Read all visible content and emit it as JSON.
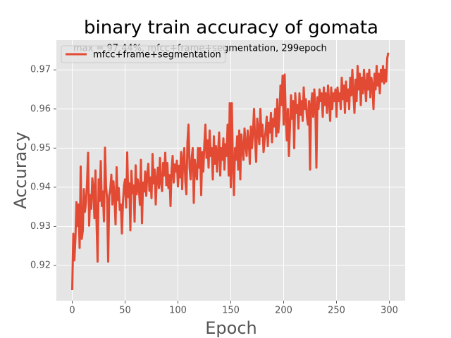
{
  "chart_data": {
    "type": "line",
    "title": "binary train accuracy of gomata",
    "xlabel": "Epoch",
    "ylabel": "Accuracy",
    "annotation": "max = 97.44%, mfcc+frame+segmentation, 299epoch",
    "legend": "upper left",
    "grid": true,
    "xlim": [
      -15,
      315
    ],
    "ylim": [
      0.911,
      0.9776
    ],
    "xticks": [
      0,
      50,
      100,
      150,
      200,
      250,
      300
    ],
    "yticks": [
      0.92,
      0.93,
      0.94,
      0.95,
      0.96,
      0.97
    ],
    "x": [
      0,
      1,
      2,
      3,
      4,
      5,
      6,
      7,
      8,
      9,
      10,
      11,
      12,
      13,
      14,
      15,
      16,
      17,
      18,
      19,
      20,
      21,
      22,
      23,
      24,
      25,
      26,
      27,
      28,
      29,
      30,
      31,
      32,
      33,
      34,
      35,
      36,
      37,
      38,
      39,
      40,
      41,
      42,
      43,
      44,
      45,
      46,
      47,
      48,
      49,
      50,
      51,
      52,
      53,
      54,
      55,
      56,
      57,
      58,
      59,
      60,
      61,
      62,
      63,
      64,
      65,
      66,
      67,
      68,
      69,
      70,
      71,
      72,
      73,
      74,
      75,
      76,
      77,
      78,
      79,
      80,
      81,
      82,
      83,
      84,
      85,
      86,
      87,
      88,
      89,
      90,
      91,
      92,
      93,
      94,
      95,
      96,
      97,
      98,
      99,
      100,
      101,
      102,
      103,
      104,
      105,
      106,
      107,
      108,
      109,
      110,
      111,
      112,
      113,
      114,
      115,
      116,
      117,
      118,
      119,
      120,
      121,
      122,
      123,
      124,
      125,
      126,
      127,
      128,
      129,
      130,
      131,
      132,
      133,
      134,
      135,
      136,
      137,
      138,
      139,
      140,
      141,
      142,
      143,
      144,
      145,
      146,
      147,
      148,
      149,
      150,
      151,
      152,
      153,
      154,
      155,
      156,
      157,
      158,
      159,
      160,
      161,
      162,
      163,
      164,
      165,
      166,
      167,
      168,
      169,
      170,
      171,
      172,
      173,
      174,
      175,
      176,
      177,
      178,
      179,
      180,
      181,
      182,
      183,
      184,
      185,
      186,
      187,
      188,
      189,
      190,
      191,
      192,
      193,
      194,
      195,
      196,
      197,
      198,
      199,
      200,
      201,
      202,
      203,
      204,
      205,
      206,
      207,
      208,
      209,
      210,
      211,
      212,
      213,
      214,
      215,
      216,
      217,
      218,
      219,
      220,
      221,
      222,
      223,
      224,
      225,
      226,
      227,
      228,
      229,
      230,
      231,
      232,
      233,
      234,
      235,
      236,
      237,
      238,
      239,
      240,
      241,
      242,
      243,
      244,
      245,
      246,
      247,
      248,
      249,
      250,
      251,
      252,
      253,
      254,
      255,
      256,
      257,
      258,
      259,
      260,
      261,
      262,
      263,
      264,
      265,
      266,
      267,
      268,
      269,
      270,
      271,
      272,
      273,
      274,
      275,
      276,
      277,
      278,
      279,
      280,
      281,
      282,
      283,
      284,
      285,
      286,
      287,
      288,
      289,
      290,
      291,
      292,
      293,
      294,
      295,
      296,
      297,
      298,
      299
    ],
    "series": [
      {
        "name": "mfcc+frame+segmentation",
        "color": "#e24a33",
        "values": [
          0.9137,
          0.9281,
          0.9213,
          0.9268,
          0.9362,
          0.9301,
          0.9356,
          0.9245,
          0.9453,
          0.9268,
          0.9289,
          0.9395,
          0.9337,
          0.936,
          0.9412,
          0.9488,
          0.9302,
          0.938,
          0.9345,
          0.9423,
          0.9398,
          0.9321,
          0.9443,
          0.9311,
          0.921,
          0.942,
          0.9365,
          0.9467,
          0.9352,
          0.9389,
          0.9313,
          0.9501,
          0.9402,
          0.9369,
          0.921,
          0.9378,
          0.9395,
          0.9432,
          0.9356,
          0.9415,
          0.9372,
          0.9305,
          0.9451,
          0.9367,
          0.9398,
          0.9342,
          0.9356,
          0.9282,
          0.9361,
          0.9405,
          0.942,
          0.9348,
          0.9489,
          0.9375,
          0.941,
          0.929,
          0.9442,
          0.9385,
          0.9405,
          0.9312,
          0.9456,
          0.9382,
          0.942,
          0.9399,
          0.9355,
          0.947,
          0.9308,
          0.9412,
          0.9389,
          0.944,
          0.9378,
          0.9432,
          0.946,
          0.9391,
          0.9425,
          0.9372,
          0.9485,
          0.941,
          0.9445,
          0.9356,
          0.942,
          0.945,
          0.9398,
          0.9475,
          0.9412,
          0.939,
          0.9462,
          0.943,
          0.9488,
          0.9405,
          0.9462,
          0.9398,
          0.9431,
          0.9352,
          0.9445,
          0.948,
          0.9412,
          0.9458,
          0.944,
          0.9468,
          0.9402,
          0.9455,
          0.9425,
          0.949,
          0.9395,
          0.947,
          0.95,
          0.9415,
          0.9382,
          0.9515,
          0.956,
          0.945,
          0.942,
          0.9475,
          0.95,
          0.936,
          0.947,
          0.944,
          0.942,
          0.95,
          0.945,
          0.95,
          0.938,
          0.949,
          0.944,
          0.951,
          0.956,
          0.9475,
          0.952,
          0.945,
          0.9545,
          0.948,
          0.95,
          0.942,
          0.953,
          0.946,
          0.9505,
          0.944,
          0.949,
          0.954,
          0.943,
          0.95,
          0.947,
          0.9525,
          0.9445,
          0.951,
          0.948,
          0.956,
          0.943,
          0.9615,
          0.94,
          0.9615,
          0.9455,
          0.938,
          0.95,
          0.947,
          0.953,
          0.9445,
          0.9545,
          0.942,
          0.9535,
          0.95,
          0.947,
          0.955,
          0.951,
          0.948,
          0.9545,
          0.952,
          0.946,
          0.9555,
          0.95,
          0.954,
          0.96,
          0.952,
          0.9465,
          0.9575,
          0.9545,
          0.951,
          0.96,
          0.953,
          0.956,
          0.949,
          0.952,
          0.9545,
          0.958,
          0.9505,
          0.9565,
          0.954,
          0.959,
          0.9515,
          0.9575,
          0.9555,
          0.96,
          0.953,
          0.9625,
          0.954,
          0.958,
          0.966,
          0.961,
          0.9685,
          0.956,
          0.9688,
          0.958,
          0.952,
          0.96,
          0.948,
          0.9555,
          0.9635,
          0.9575,
          0.962,
          0.95,
          0.964,
          0.959,
          0.961,
          0.955,
          0.964,
          0.9585,
          0.962,
          0.957,
          0.9655,
          0.96,
          0.9625,
          0.958,
          0.956,
          0.962,
          0.9445,
          0.961,
          0.964,
          0.958,
          0.965,
          0.961,
          0.945,
          0.963,
          0.96,
          0.965,
          0.962,
          0.964,
          0.958,
          0.9655,
          0.961,
          0.964,
          0.959,
          0.966,
          0.962,
          0.957,
          0.9655,
          0.96,
          0.964,
          0.962,
          0.965,
          0.958,
          0.9655,
          0.962,
          0.964,
          0.96,
          0.968,
          0.9625,
          0.966,
          0.959,
          0.967,
          0.962,
          0.965,
          0.96,
          0.968,
          0.9635,
          0.97,
          0.964,
          0.959,
          0.9675,
          0.962,
          0.971,
          0.965,
          0.969,
          0.961,
          0.968,
          0.964,
          0.97,
          0.966,
          0.962,
          0.969,
          0.965,
          0.97,
          0.963,
          0.968,
          0.966,
          0.96,
          0.969,
          0.965,
          0.971,
          0.966,
          0.969,
          0.964,
          0.97,
          0.967,
          0.971,
          0.9665,
          0.97,
          0.967,
          0.973,
          0.9744
        ]
      }
    ]
  }
}
